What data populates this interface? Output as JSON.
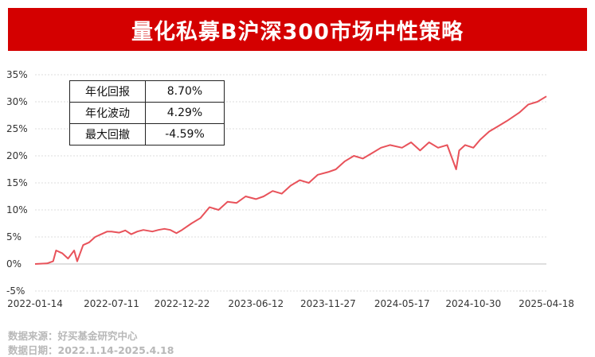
{
  "title": "量化私募B沪深300市场中性策略",
  "stats": [
    {
      "label": "年化回报",
      "value": "8.70%"
    },
    {
      "label": "年化波动",
      "value": "4.29%"
    },
    {
      "label": "最大回撤",
      "value": "-4.59%"
    }
  ],
  "footer": {
    "source": "数据来源：好买基金研究中心",
    "date": "数据日期：2022.1.14-2025.4.18"
  },
  "colors": {
    "banner": "#d40000",
    "line": "#e8525a"
  },
  "chart_data": {
    "type": "line",
    "title": "量化私募B沪深300市场中性策略",
    "xlabel": "",
    "ylabel": "",
    "ylim": [
      -5,
      35
    ],
    "y_ticks": [
      "-5%",
      "0%",
      "5%",
      "10%",
      "15%",
      "20%",
      "25%",
      "30%",
      "35%"
    ],
    "x_ticks": [
      "2022-01-14",
      "2022-07-11",
      "2022-12-22",
      "2023-06-12",
      "2023-11-27",
      "2024-05-17",
      "2024-10-30",
      "2025-04-18"
    ],
    "xlim": [
      "2022-01-14",
      "2025-04-18"
    ],
    "grid": true,
    "legend": "none",
    "series": [
      {
        "x": [
          "2022-01-14",
          "2022-02-11",
          "2022-02-25",
          "2022-03-04",
          "2022-03-18",
          "2022-04-01",
          "2022-04-15",
          "2022-04-22",
          "2022-05-06",
          "2022-05-20",
          "2022-06-03",
          "2022-06-17",
          "2022-07-01",
          "2022-07-11",
          "2022-07-29",
          "2022-08-12",
          "2022-08-26",
          "2022-09-09",
          "2022-09-23",
          "2022-10-14",
          "2022-10-28",
          "2022-11-11",
          "2022-11-25",
          "2022-12-09",
          "2022-12-22",
          "2023-01-13",
          "2023-02-03",
          "2023-02-24",
          "2023-03-17",
          "2023-04-07",
          "2023-04-28",
          "2023-05-19",
          "2023-06-12",
          "2023-06-30",
          "2023-07-21",
          "2023-08-11",
          "2023-09-01",
          "2023-09-22",
          "2023-10-13",
          "2023-11-03",
          "2023-11-27",
          "2023-12-15",
          "2024-01-05",
          "2024-01-26",
          "2024-02-16",
          "2024-03-08",
          "2024-03-29",
          "2024-04-19",
          "2024-05-17",
          "2024-06-07",
          "2024-06-28",
          "2024-07-19",
          "2024-08-09",
          "2024-08-30",
          "2024-09-20",
          "2024-09-27",
          "2024-10-11",
          "2024-10-30",
          "2024-11-15",
          "2024-12-06",
          "2024-12-27",
          "2025-01-17",
          "2025-02-14",
          "2025-03-07",
          "2025-03-28",
          "2025-04-18"
        ],
        "values": [
          0,
          0.1,
          0.5,
          2.5,
          2.0,
          1.0,
          2.5,
          0.5,
          3.5,
          4.0,
          5.0,
          5.5,
          6.0,
          6.0,
          5.8,
          6.2,
          5.5,
          6.0,
          6.3,
          6.0,
          6.3,
          6.5,
          6.3,
          5.7,
          6.3,
          7.5,
          8.5,
          10.5,
          10.0,
          11.5,
          11.3,
          12.5,
          12.0,
          12.5,
          13.5,
          13.0,
          14.5,
          15.5,
          15.0,
          16.5,
          17.0,
          17.5,
          19.0,
          20.0,
          19.5,
          20.5,
          21.5,
          22.0,
          21.5,
          22.5,
          21.0,
          22.5,
          21.5,
          22.0,
          17.5,
          21.0,
          22.0,
          21.5,
          23.0,
          24.5,
          25.5,
          26.5,
          28.0,
          29.5,
          30.0,
          31.0
        ]
      }
    ]
  }
}
